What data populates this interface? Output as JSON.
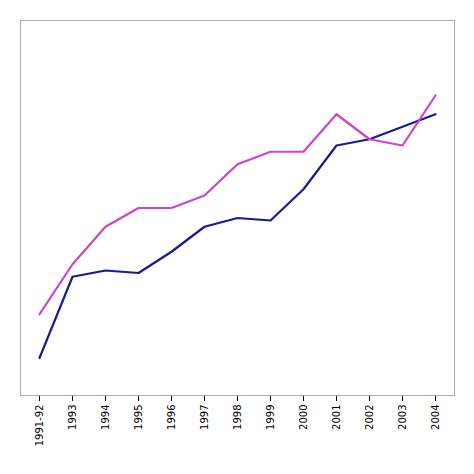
{
  "chart_data": {
    "type": "line",
    "categories": [
      "1991-92",
      "1993",
      "1994",
      "1995",
      "1996",
      "1997",
      "1998",
      "1999",
      "2000",
      "2001",
      "2002",
      "2003",
      "2004"
    ],
    "series": [
      {
        "color": "#1a1a8c",
        "values": [
          3.0,
          9.5,
          10.0,
          9.8,
          11.5,
          13.5,
          14.2,
          14.0,
          16.5,
          20.0,
          20.5,
          21.5,
          22.5
        ]
      },
      {
        "color": "#cc44cc",
        "values": [
          6.5,
          10.5,
          13.5,
          15.0,
          15.0,
          16.0,
          18.5,
          19.5,
          19.5,
          22.5,
          20.5,
          20.0,
          24.0
        ]
      }
    ],
    "ylim": [
      0,
      30
    ],
    "yticks": [],
    "grid": false,
    "tick_labels": "x"
  }
}
